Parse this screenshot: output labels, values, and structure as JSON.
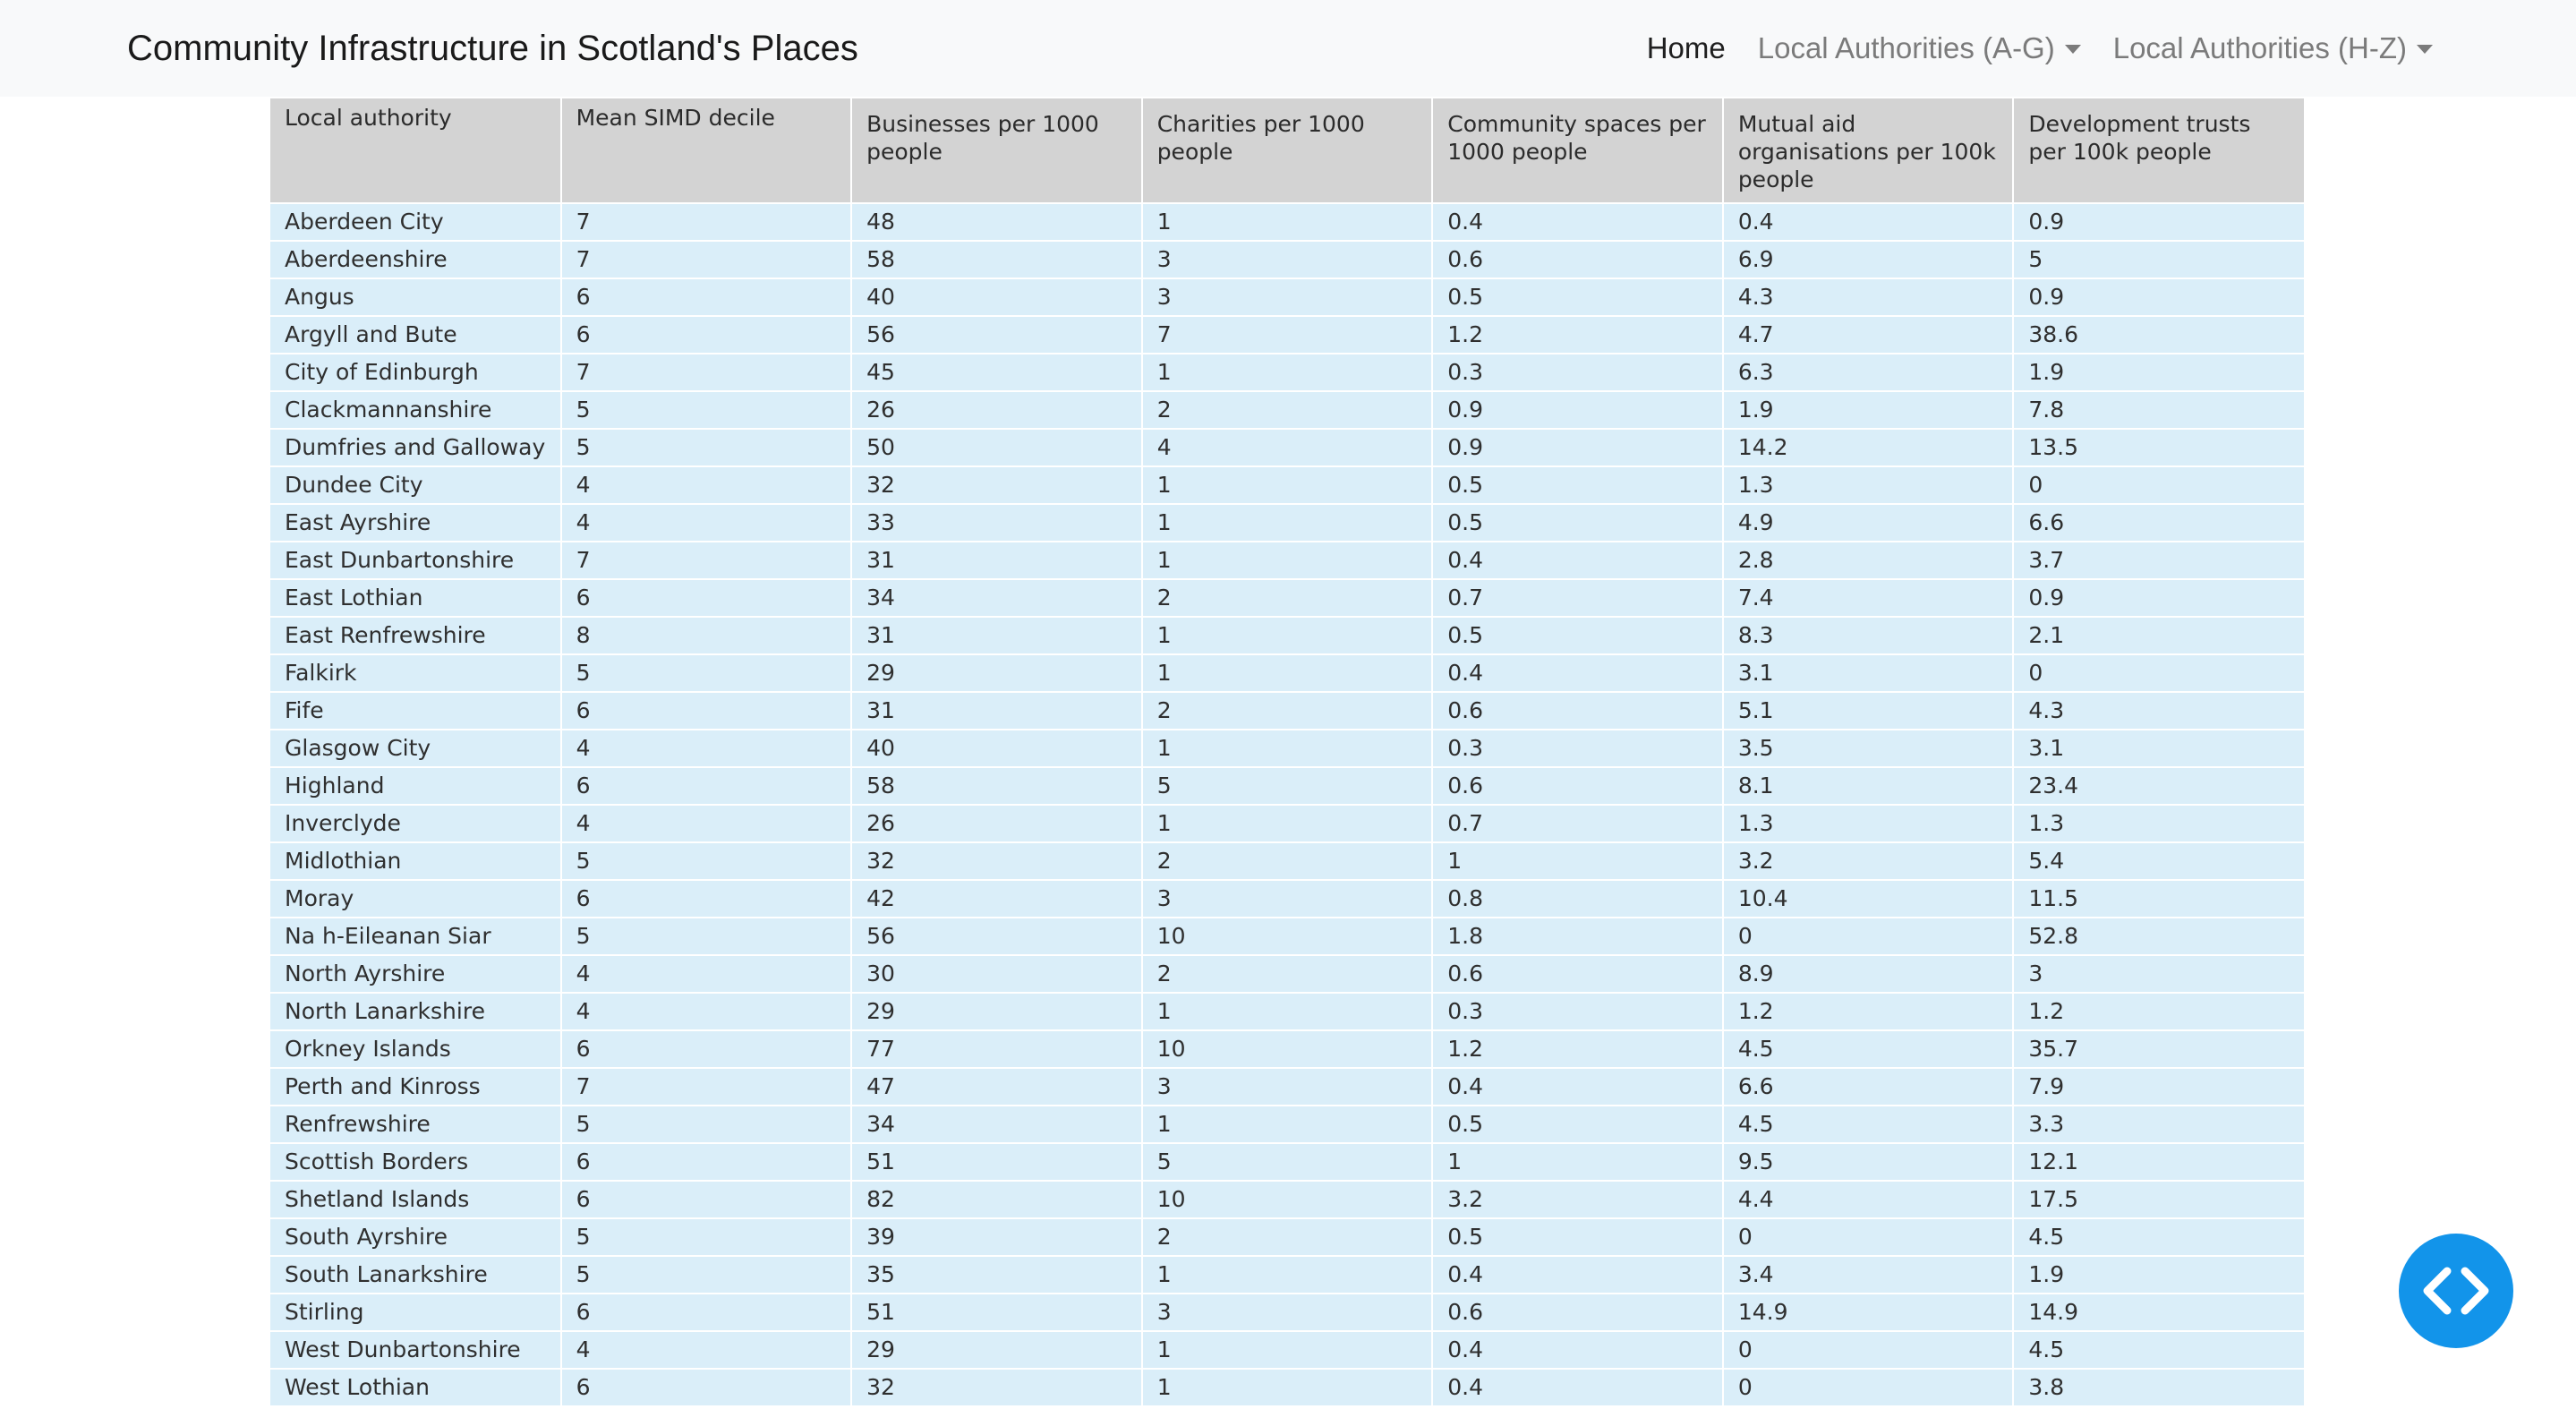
{
  "navbar": {
    "brand": "Community Infrastructure in Scotland's Places",
    "links": {
      "home": "Home",
      "ag": "Local Authorities (A-G)",
      "hz": "Local Authorities (H-Z)"
    }
  },
  "table": {
    "headers": [
      "Local authority",
      "Mean SIMD decile",
      "Businesses per 1000 people",
      "Charities per 1000 people",
      "Community spaces per 1000 people",
      "Mutual aid organisations per 100k people",
      "Development trusts per 100k people"
    ],
    "rows": [
      [
        "Aberdeen City",
        "7",
        "48",
        "1",
        "0.4",
        "0.4",
        "0.9"
      ],
      [
        "Aberdeenshire",
        "7",
        "58",
        "3",
        "0.6",
        "6.9",
        "5"
      ],
      [
        "Angus",
        "6",
        "40",
        "3",
        "0.5",
        "4.3",
        "0.9"
      ],
      [
        "Argyll and Bute",
        "6",
        "56",
        "7",
        "1.2",
        "4.7",
        "38.6"
      ],
      [
        "City of Edinburgh",
        "7",
        "45",
        "1",
        "0.3",
        "6.3",
        "1.9"
      ],
      [
        "Clackmannanshire",
        "5",
        "26",
        "2",
        "0.9",
        "1.9",
        "7.8"
      ],
      [
        "Dumfries and Galloway",
        "5",
        "50",
        "4",
        "0.9",
        "14.2",
        "13.5"
      ],
      [
        "Dundee City",
        "4",
        "32",
        "1",
        "0.5",
        "1.3",
        "0"
      ],
      [
        "East Ayrshire",
        "4",
        "33",
        "1",
        "0.5",
        "4.9",
        "6.6"
      ],
      [
        "East Dunbartonshire",
        "7",
        "31",
        "1",
        "0.4",
        "2.8",
        "3.7"
      ],
      [
        "East Lothian",
        "6",
        "34",
        "2",
        "0.7",
        "7.4",
        "0.9"
      ],
      [
        "East Renfrewshire",
        "8",
        "31",
        "1",
        "0.5",
        "8.3",
        "2.1"
      ],
      [
        "Falkirk",
        "5",
        "29",
        "1",
        "0.4",
        "3.1",
        "0"
      ],
      [
        "Fife",
        "6",
        "31",
        "2",
        "0.6",
        "5.1",
        "4.3"
      ],
      [
        "Glasgow City",
        "4",
        "40",
        "1",
        "0.3",
        "3.5",
        "3.1"
      ],
      [
        "Highland",
        "6",
        "58",
        "5",
        "0.6",
        "8.1",
        "23.4"
      ],
      [
        "Inverclyde",
        "4",
        "26",
        "1",
        "0.7",
        "1.3",
        "1.3"
      ],
      [
        "Midlothian",
        "5",
        "32",
        "2",
        "1",
        "3.2",
        "5.4"
      ],
      [
        "Moray",
        "6",
        "42",
        "3",
        "0.8",
        "10.4",
        "11.5"
      ],
      [
        "Na h-Eileanan Siar",
        "5",
        "56",
        "10",
        "1.8",
        "0",
        "52.8"
      ],
      [
        "North Ayrshire",
        "4",
        "30",
        "2",
        "0.6",
        "8.9",
        "3"
      ],
      [
        "North Lanarkshire",
        "4",
        "29",
        "1",
        "0.3",
        "1.2",
        "1.2"
      ],
      [
        "Orkney Islands",
        "6",
        "77",
        "10",
        "1.2",
        "4.5",
        "35.7"
      ],
      [
        "Perth and Kinross",
        "7",
        "47",
        "3",
        "0.4",
        "6.6",
        "7.9"
      ],
      [
        "Renfrewshire",
        "5",
        "34",
        "1",
        "0.5",
        "4.5",
        "3.3"
      ],
      [
        "Scottish Borders",
        "6",
        "51",
        "5",
        "1",
        "9.5",
        "12.1"
      ],
      [
        "Shetland Islands",
        "6",
        "82",
        "10",
        "3.2",
        "4.4",
        "17.5"
      ],
      [
        "South Ayrshire",
        "5",
        "39",
        "2",
        "0.5",
        "0",
        "4.5"
      ],
      [
        "South Lanarkshire",
        "5",
        "35",
        "1",
        "0.4",
        "3.4",
        "1.9"
      ],
      [
        "Stirling",
        "6",
        "51",
        "3",
        "0.6",
        "14.9",
        "14.9"
      ],
      [
        "West Dunbartonshire",
        "4",
        "29",
        "1",
        "0.4",
        "0",
        "4.5"
      ],
      [
        "West Lothian",
        "6",
        "32",
        "1",
        "0.4",
        "0",
        "3.8"
      ]
    ]
  },
  "fab": {
    "icon": "code-icon",
    "color": "#1294ea"
  }
}
